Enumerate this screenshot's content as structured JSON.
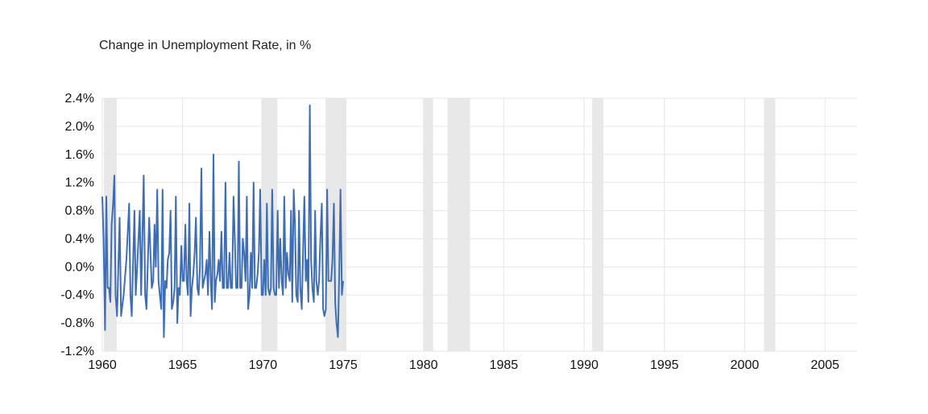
{
  "chart_data": {
    "type": "line",
    "title": "Change in Unemployment Rate, in %",
    "xlabel": "",
    "ylabel": "",
    "xlim": [
      1960,
      2007
    ],
    "ylim": [
      -1.2,
      2.4
    ],
    "grid": true,
    "y_ticks": [
      -1.2,
      -0.8,
      -0.4,
      0.0,
      0.4,
      0.8,
      1.2,
      1.6,
      2.0,
      2.4
    ],
    "y_tick_labels": [
      "-1.2%",
      "-0.8%",
      "-0.4%",
      "0.0%",
      "0.4%",
      "0.8%",
      "1.2%",
      "1.6%",
      "2.0%",
      "2.4%"
    ],
    "x_ticks": [
      1960,
      1965,
      1970,
      1975,
      1980,
      1985,
      1990,
      1995,
      2000,
      2005
    ],
    "x_tick_labels": [
      "1960",
      "1965",
      "1970",
      "1975",
      "1980",
      "1985",
      "1990",
      "1995",
      "2000",
      "2005"
    ],
    "recession_bands": [
      [
        1960.1,
        1960.9
      ],
      [
        1969.9,
        1970.9
      ],
      [
        1973.9,
        1975.2
      ],
      [
        1980.0,
        1980.6
      ],
      [
        1981.5,
        1982.9
      ],
      [
        1990.5,
        1991.2
      ],
      [
        2001.2,
        2001.9
      ]
    ],
    "series": [
      {
        "color": "#3d6db5",
        "points": [
          [
            1960.0,
            1.0
          ],
          [
            1960.08,
            0.4
          ],
          [
            1960.17,
            -0.9
          ],
          [
            1960.25,
            1.0
          ],
          [
            1960.33,
            -0.3
          ],
          [
            1960.42,
            -0.3
          ],
          [
            1960.5,
            -0.5
          ],
          [
            1960.58,
            0.6
          ],
          [
            1960.67,
            0.9
          ],
          [
            1960.75,
            1.3
          ],
          [
            1960.83,
            -0.4
          ],
          [
            1960.92,
            -0.7
          ],
          [
            1961.08,
            0.7
          ],
          [
            1961.17,
            -0.7
          ],
          [
            1961.33,
            -0.4
          ],
          [
            1961.5,
            0.1
          ],
          [
            1961.67,
            0.9
          ],
          [
            1961.75,
            -0.4
          ],
          [
            1961.83,
            -0.7
          ],
          [
            1962.0,
            0.8
          ],
          [
            1962.08,
            -0.4
          ],
          [
            1962.17,
            0.0
          ],
          [
            1962.33,
            0.8
          ],
          [
            1962.42,
            -0.4
          ],
          [
            1962.58,
            1.3
          ],
          [
            1962.67,
            -0.4
          ],
          [
            1962.75,
            -0.6
          ],
          [
            1962.92,
            0.7
          ],
          [
            1963.08,
            -0.3
          ],
          [
            1963.17,
            -0.2
          ],
          [
            1963.25,
            0.6
          ],
          [
            1963.33,
            0.0
          ],
          [
            1963.42,
            1.1
          ],
          [
            1963.5,
            -0.2
          ],
          [
            1963.58,
            -0.4
          ],
          [
            1963.67,
            -0.6
          ],
          [
            1963.75,
            1.1
          ],
          [
            1963.83,
            -1.0
          ],
          [
            1963.92,
            -0.2
          ],
          [
            1964.0,
            -0.3
          ],
          [
            1964.08,
            0.1
          ],
          [
            1964.17,
            0.2
          ],
          [
            1964.25,
            0.8
          ],
          [
            1964.33,
            -0.6
          ],
          [
            1964.42,
            -0.5
          ],
          [
            1964.5,
            -0.3
          ],
          [
            1964.58,
            1.0
          ],
          [
            1964.67,
            -0.8
          ],
          [
            1964.75,
            -0.3
          ],
          [
            1964.83,
            -0.4
          ],
          [
            1964.92,
            0.3
          ],
          [
            1965.0,
            -0.2
          ],
          [
            1965.08,
            -0.2
          ],
          [
            1965.17,
            0.6
          ],
          [
            1965.25,
            -0.2
          ],
          [
            1965.33,
            -0.4
          ],
          [
            1965.42,
            0.9
          ],
          [
            1965.5,
            -0.7
          ],
          [
            1965.58,
            -0.3
          ],
          [
            1965.67,
            -0.1
          ],
          [
            1965.75,
            0.2
          ],
          [
            1965.83,
            0.7
          ],
          [
            1965.92,
            -0.3
          ],
          [
            1966.0,
            -0.4
          ],
          [
            1966.08,
            0.0
          ],
          [
            1966.17,
            1.4
          ],
          [
            1966.25,
            -0.3
          ],
          [
            1966.33,
            -0.2
          ],
          [
            1966.42,
            -0.1
          ],
          [
            1966.5,
            0.1
          ],
          [
            1966.58,
            -0.4
          ],
          [
            1966.67,
            0.5
          ],
          [
            1966.75,
            -0.2
          ],
          [
            1966.83,
            -0.6
          ],
          [
            1966.92,
            1.6
          ],
          [
            1967.0,
            -0.5
          ],
          [
            1967.08,
            -0.2
          ],
          [
            1967.17,
            -0.1
          ],
          [
            1967.25,
            0.1
          ],
          [
            1967.33,
            -0.2
          ],
          [
            1967.42,
            0.5
          ],
          [
            1967.5,
            -0.3
          ],
          [
            1967.58,
            -0.3
          ],
          [
            1967.67,
            1.2
          ],
          [
            1967.75,
            -0.3
          ],
          [
            1967.83,
            -0.3
          ],
          [
            1967.92,
            0.2
          ],
          [
            1968.0,
            -0.3
          ],
          [
            1968.08,
            -0.3
          ],
          [
            1968.17,
            1.0
          ],
          [
            1968.25,
            0.4
          ],
          [
            1968.33,
            -0.3
          ],
          [
            1968.42,
            -0.3
          ],
          [
            1968.5,
            1.5
          ],
          [
            1968.58,
            -0.3
          ],
          [
            1968.67,
            -0.3
          ],
          [
            1968.75,
            0.4
          ],
          [
            1968.83,
            0.2
          ],
          [
            1968.92,
            -0.2
          ],
          [
            1969.0,
            1.0
          ],
          [
            1969.08,
            -0.6
          ],
          [
            1969.17,
            -0.4
          ],
          [
            1969.25,
            0.2
          ],
          [
            1969.33,
            -0.3
          ],
          [
            1969.42,
            1.2
          ],
          [
            1969.5,
            -0.3
          ],
          [
            1969.58,
            -0.3
          ],
          [
            1969.67,
            -0.1
          ],
          [
            1969.75,
            0.2
          ],
          [
            1969.83,
            1.1
          ],
          [
            1969.92,
            -0.4
          ],
          [
            1970.0,
            -0.4
          ],
          [
            1970.08,
            0.1
          ],
          [
            1970.17,
            -0.4
          ],
          [
            1970.25,
            0.9
          ],
          [
            1970.33,
            -0.3
          ],
          [
            1970.42,
            -0.4
          ],
          [
            1970.5,
            -0.3
          ],
          [
            1970.58,
            1.1
          ],
          [
            1970.67,
            -0.3
          ],
          [
            1970.75,
            -0.4
          ],
          [
            1970.83,
            -0.4
          ],
          [
            1970.92,
            0.8
          ],
          [
            1971.0,
            -0.3
          ],
          [
            1971.08,
            0.4
          ],
          [
            1971.17,
            -0.2
          ],
          [
            1971.25,
            -0.4
          ],
          [
            1971.33,
            1.0
          ],
          [
            1971.42,
            -0.3
          ],
          [
            1971.5,
            0.2
          ],
          [
            1971.58,
            -0.1
          ],
          [
            1971.67,
            -0.2
          ],
          [
            1971.75,
            0.8
          ],
          [
            1971.83,
            -0.5
          ],
          [
            1971.92,
            1.1
          ],
          [
            1972.0,
            0.6
          ],
          [
            1972.08,
            -0.4
          ],
          [
            1972.17,
            -0.5
          ],
          [
            1972.25,
            0.8
          ],
          [
            1972.33,
            -0.3
          ],
          [
            1972.42,
            -0.6
          ],
          [
            1972.5,
            0.2
          ],
          [
            1972.58,
            1.0
          ],
          [
            1972.67,
            -0.2
          ],
          [
            1972.75,
            0.1
          ],
          [
            1972.83,
            -0.5
          ],
          [
            1972.92,
            2.3
          ],
          [
            1973.0,
            0.1
          ],
          [
            1973.08,
            -0.3
          ],
          [
            1973.17,
            -0.5
          ],
          [
            1973.25,
            0.8
          ],
          [
            1973.33,
            -0.2
          ],
          [
            1973.42,
            -0.4
          ],
          [
            1973.5,
            -0.2
          ],
          [
            1973.58,
            0.4
          ],
          [
            1973.67,
            0.9
          ],
          [
            1973.75,
            -0.6
          ],
          [
            1973.83,
            -0.7
          ],
          [
            1973.92,
            -0.6
          ],
          [
            1974.0,
            1.1
          ],
          [
            1974.08,
            -0.2
          ],
          [
            1974.17,
            -0.2
          ],
          [
            1974.25,
            -0.2
          ],
          [
            1974.33,
            0.1
          ],
          [
            1974.42,
            0.9
          ],
          [
            1974.5,
            -0.5
          ],
          [
            1974.58,
            -0.8
          ],
          [
            1974.67,
            -1.0
          ],
          [
            1974.75,
            -0.1
          ],
          [
            1974.83,
            1.1
          ],
          [
            1974.92,
            -0.4
          ],
          [
            1975.0,
            -0.2
          ]
        ]
      }
    ]
  }
}
